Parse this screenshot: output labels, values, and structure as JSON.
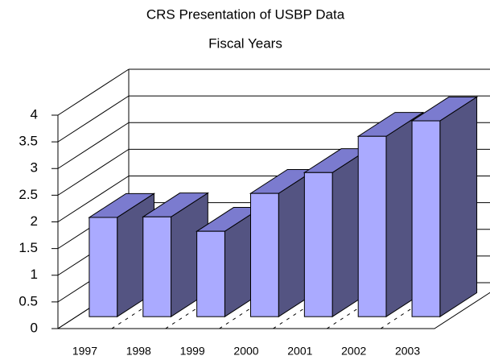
{
  "chart_data": {
    "type": "bar3d",
    "title": "CRS Presentation of USBP Data",
    "subtitle": "Fiscal Years",
    "categories": [
      "1997",
      "1998",
      "1999",
      "2000",
      "2001",
      "2002",
      "2003"
    ],
    "values": [
      1.86,
      1.87,
      1.6,
      2.31,
      2.7,
      3.38,
      3.67
    ],
    "ylim": [
      0,
      4
    ],
    "yticks": [
      0,
      0.5,
      1,
      1.5,
      2,
      2.5,
      3,
      3.5,
      4
    ],
    "grid": true,
    "color": "#aaaaff"
  }
}
